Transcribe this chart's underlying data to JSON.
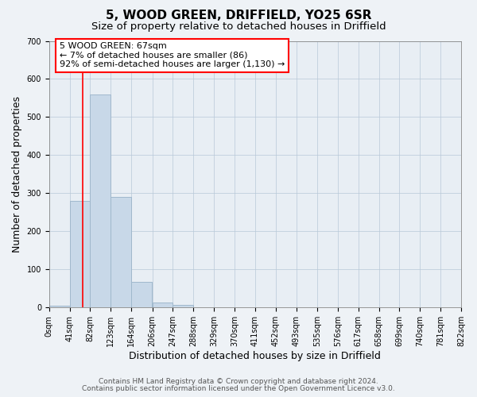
{
  "title": "5, WOOD GREEN, DRIFFIELD, YO25 6SR",
  "subtitle": "Size of property relative to detached houses in Driffield",
  "xlabel": "Distribution of detached houses by size in Driffield",
  "ylabel": "Number of detached properties",
  "bin_edges": [
    0,
    41,
    82,
    123,
    164,
    206,
    247,
    288,
    329,
    370,
    411,
    452,
    493,
    535,
    576,
    617,
    658,
    699,
    740,
    781,
    822
  ],
  "bar_heights": [
    5,
    280,
    560,
    290,
    67,
    14,
    8,
    0,
    0,
    0,
    0,
    0,
    0,
    0,
    0,
    0,
    0,
    0,
    0,
    0
  ],
  "bar_color": "#c8d8e8",
  "bar_edge_color": "#a0b8cc",
  "red_line_x": 67,
  "ylim": [
    0,
    700
  ],
  "yticks": [
    0,
    100,
    200,
    300,
    400,
    500,
    600,
    700
  ],
  "annotation_box_text": "5 WOOD GREEN: 67sqm\n← 7% of detached houses are smaller (86)\n92% of semi-detached houses are larger (1,130) →",
  "footer_line1": "Contains HM Land Registry data © Crown copyright and database right 2024.",
  "footer_line2": "Contains public sector information licensed under the Open Government Licence v3.0.",
  "background_color": "#eef2f6",
  "plot_background_color": "#e8eef4",
  "title_fontsize": 11,
  "subtitle_fontsize": 9.5,
  "tick_label_fontsize": 7,
  "axis_label_fontsize": 9,
  "annotation_fontsize": 8,
  "footer_fontsize": 6.5
}
